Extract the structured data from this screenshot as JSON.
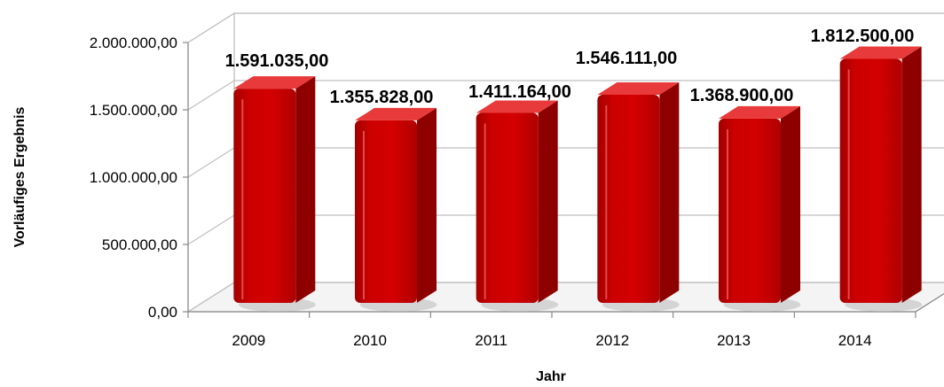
{
  "chart_data": {
    "type": "bar",
    "title": "",
    "xlabel": "Jahr",
    "ylabel": "Vorläufiges Ergebnis",
    "categories": [
      "2009",
      "2010",
      "2011",
      "2012",
      "2013",
      "2014"
    ],
    "values": [
      1591035,
      1355828,
      1411164,
      1546111,
      1368900,
      1812500
    ],
    "value_labels": [
      "1.591.035,00",
      "1.355.828,00",
      "1.411.164,00",
      "1.546.111,00",
      "1.368.900,00",
      "1.812.500,00"
    ],
    "ylim": [
      0,
      2000000
    ],
    "yticks": [
      0,
      500000,
      1000000,
      1500000,
      2000000
    ],
    "ytick_labels": [
      "0,00",
      "500.000,00",
      "1.000.000,00",
      "1.500.000,00",
      "2.000.000,00"
    ],
    "grid": true,
    "legend": "none",
    "bar_color": "#cc0000",
    "bar_side_color": "#8e0000",
    "bar_top_color": "#e83a3a"
  }
}
